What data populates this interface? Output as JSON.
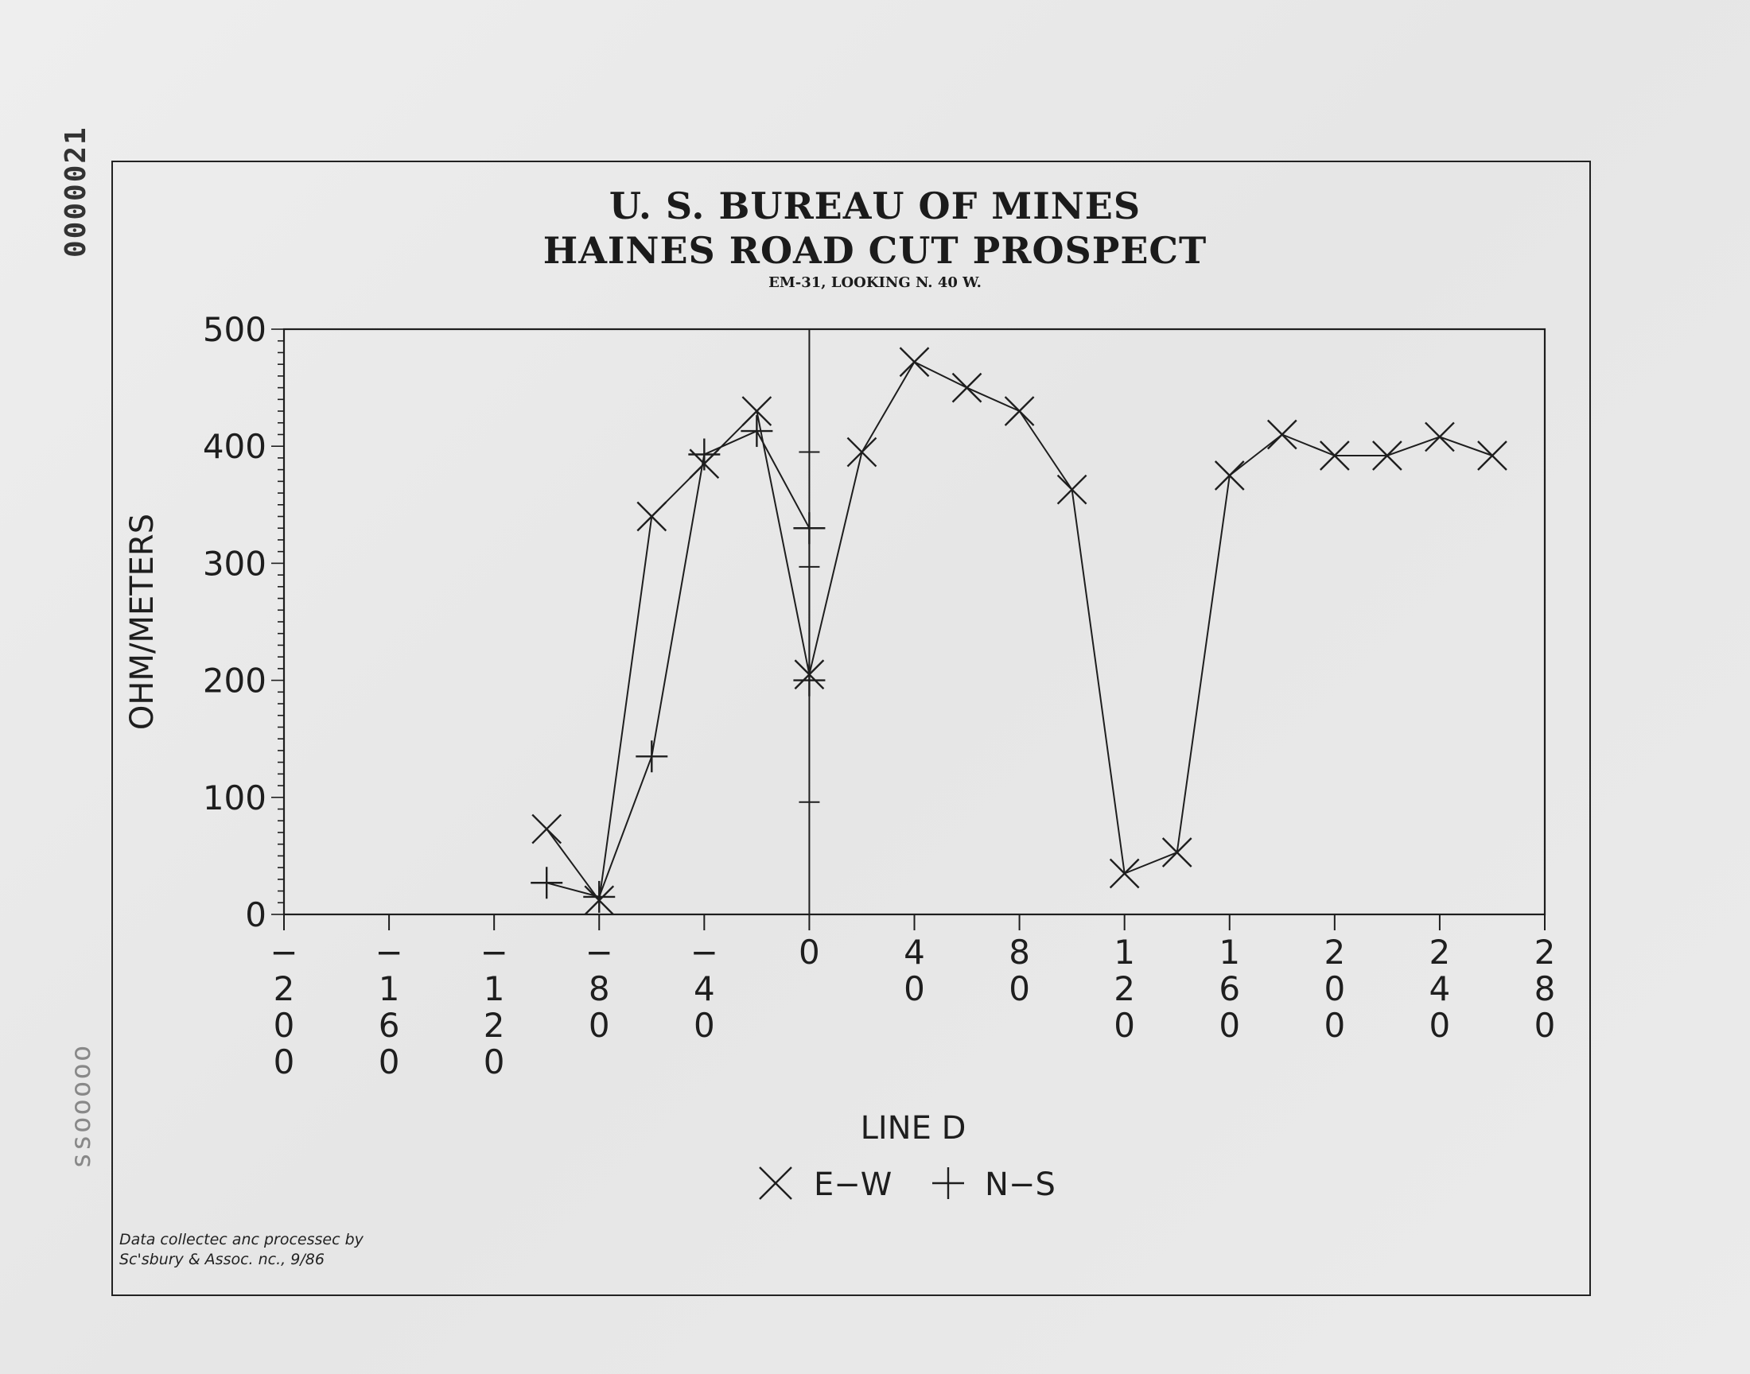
{
  "margin_stamp": "0000021",
  "margin_stamp_lower": "ssooooo",
  "credit": {
    "line1": "Data collectec anc processec by",
    "line2": "Sc'sbury & Assoc. nc., 9/86"
  },
  "chart_data": {
    "type": "line",
    "title": "U. S. BUREAU OF MINES",
    "subtitle": "HAINES ROAD CUT PROSPECT",
    "caption": "EM-31, LOOKING N. 40 W.",
    "xlabel": "LINE D",
    "ylabel": "OHM/METERS",
    "xlim": [
      -200,
      280
    ],
    "ylim": [
      0,
      500
    ],
    "x_ticks": [
      {
        "value": -200,
        "label": "−200"
      },
      {
        "value": -160,
        "label": "−160"
      },
      {
        "value": -120,
        "label": "−120"
      },
      {
        "value": -80,
        "label": "−80"
      },
      {
        "value": -40,
        "label": "−40"
      },
      {
        "value": 0,
        "label": "0"
      },
      {
        "value": 40,
        "label": "40"
      },
      {
        "value": 80,
        "label": "80"
      },
      {
        "value": 120,
        "label": "120"
      },
      {
        "value": 160,
        "label": "160"
      },
      {
        "value": 200,
        "label": "200"
      },
      {
        "value": 240,
        "label": "240"
      },
      {
        "value": 280,
        "label": "280"
      }
    ],
    "y_ticks": [
      0,
      100,
      200,
      300,
      400,
      500
    ],
    "grid": false,
    "legend_position": "bottom-center",
    "series": [
      {
        "name": "E-W",
        "marker": "x",
        "points": [
          [
            -100,
            73
          ],
          [
            -80,
            12
          ],
          [
            -60,
            340
          ],
          [
            -40,
            385
          ],
          [
            -20,
            430
          ],
          [
            0,
            205
          ],
          [
            20,
            395
          ],
          [
            40,
            472
          ],
          [
            60,
            450
          ],
          [
            80,
            430
          ],
          [
            100,
            363
          ],
          [
            120,
            35
          ],
          [
            140,
            53
          ],
          [
            160,
            375
          ],
          [
            180,
            410
          ],
          [
            200,
            392
          ],
          [
            220,
            392
          ],
          [
            240,
            408
          ],
          [
            260,
            392
          ]
        ]
      },
      {
        "name": "N-S",
        "marker": "+",
        "points": [
          [
            -100,
            27
          ],
          [
            -80,
            15
          ],
          [
            -60,
            135
          ],
          [
            -40,
            393
          ],
          [
            -20,
            413
          ],
          [
            0,
            330
          ],
          [
            0,
            200
          ]
        ]
      }
    ],
    "annotations": {
      "axis_tick_marks_on_zero_line": [
        395,
        330,
        297,
        96
      ]
    }
  }
}
